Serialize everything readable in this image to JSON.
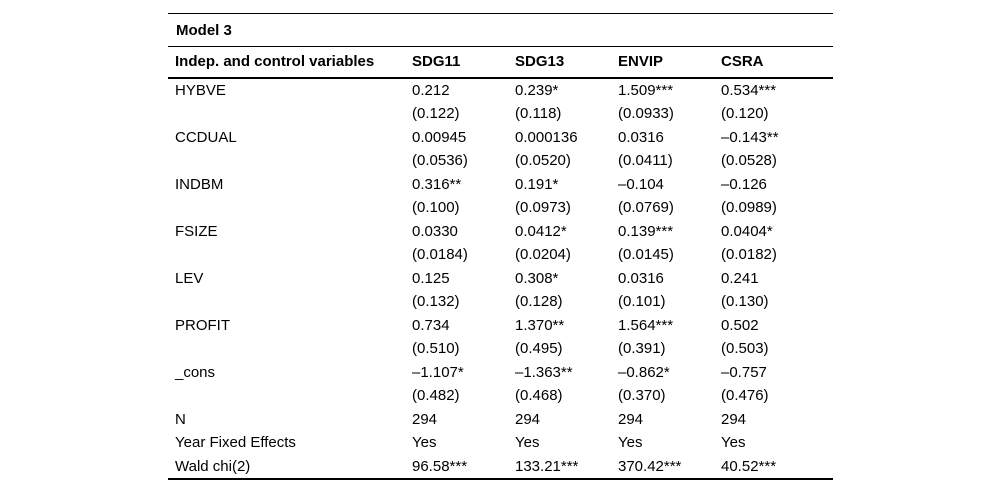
{
  "page": {
    "background_color": "#ffffff",
    "text_color": "#000000",
    "rule_color": "#000000"
  },
  "table": {
    "title": "Model 3",
    "columns": [
      "Indep. and control variables",
      "SDG11",
      "SDG13",
      "ENVIP",
      "CSRA"
    ],
    "rows": [
      {
        "label": "HYBVE",
        "values": [
          "0.212",
          "0.239*",
          "1.509***",
          "0.534***"
        ]
      },
      {
        "label": "",
        "values": [
          "(0.122)",
          "(0.118)",
          "(0.0933)",
          "(0.120)"
        ]
      },
      {
        "label": "CCDUAL",
        "values": [
          "0.00945",
          "0.000136",
          "0.0316",
          "–0.143**"
        ]
      },
      {
        "label": "",
        "values": [
          "(0.0536)",
          "(0.0520)",
          "(0.0411)",
          "(0.0528)"
        ]
      },
      {
        "label": "INDBM",
        "values": [
          "0.316**",
          "0.191*",
          "–0.104",
          "–0.126"
        ]
      },
      {
        "label": "",
        "values": [
          "(0.100)",
          "(0.0973)",
          "(0.0769)",
          "(0.0989)"
        ]
      },
      {
        "label": "FSIZE",
        "values": [
          "0.0330",
          "0.0412*",
          "0.139***",
          "0.0404*"
        ]
      },
      {
        "label": "",
        "values": [
          "(0.0184)",
          "(0.0204)",
          "(0.0145)",
          "(0.0182)"
        ]
      },
      {
        "label": "LEV",
        "values": [
          "0.125",
          "0.308*",
          "0.0316",
          "0.241"
        ]
      },
      {
        "label": "",
        "values": [
          "(0.132)",
          "(0.128)",
          "(0.101)",
          "(0.130)"
        ]
      },
      {
        "label": "PROFIT",
        "values": [
          "0.734",
          "1.370**",
          "1.564***",
          "0.502"
        ]
      },
      {
        "label": "",
        "values": [
          "(0.510)",
          "(0.495)",
          "(0.391)",
          "(0.503)"
        ]
      },
      {
        "label": "_cons",
        "values": [
          "–1.107*",
          "–1.363**",
          "–0.862*",
          "–0.757"
        ]
      },
      {
        "label": "",
        "values": [
          "(0.482)",
          "(0.468)",
          "(0.370)",
          "(0.476)"
        ]
      },
      {
        "label": "N",
        "values": [
          "294",
          "294",
          "294",
          "294"
        ]
      },
      {
        "label": "Year Fixed Effects",
        "values": [
          "Yes",
          "Yes",
          "Yes",
          "Yes"
        ]
      },
      {
        "label": "Wald chi(2)",
        "values": [
          "96.58***",
          "133.21***",
          "370.42***",
          "40.52***"
        ]
      }
    ]
  }
}
